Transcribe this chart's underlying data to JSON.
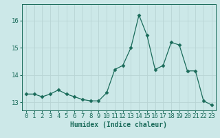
{
  "x": [
    0,
    1,
    2,
    3,
    4,
    5,
    6,
    7,
    8,
    9,
    10,
    11,
    12,
    13,
    14,
    15,
    16,
    17,
    18,
    19,
    20,
    21,
    22,
    23
  ],
  "y": [
    13.3,
    13.3,
    13.2,
    13.3,
    13.45,
    13.3,
    13.2,
    13.1,
    13.05,
    13.05,
    13.35,
    14.2,
    14.35,
    15.0,
    16.2,
    15.45,
    14.2,
    14.35,
    15.2,
    15.1,
    14.15,
    14.15,
    13.05,
    12.9
  ],
  "line_color": "#1a6b5a",
  "marker": "D",
  "marker_size": 2.5,
  "bg_color": "#cce8e8",
  "grid_color": "#b8d4d4",
  "xlabel": "Humidex (Indice chaleur)",
  "xlabel_fontsize": 7,
  "tick_fontsize": 6.5,
  "ylim": [
    12.7,
    16.6
  ],
  "yticks": [
    13,
    14,
    15,
    16
  ],
  "xticks": [
    0,
    1,
    2,
    3,
    4,
    5,
    6,
    7,
    8,
    9,
    10,
    11,
    12,
    13,
    14,
    15,
    16,
    17,
    18,
    19,
    20,
    21,
    22,
    23
  ]
}
